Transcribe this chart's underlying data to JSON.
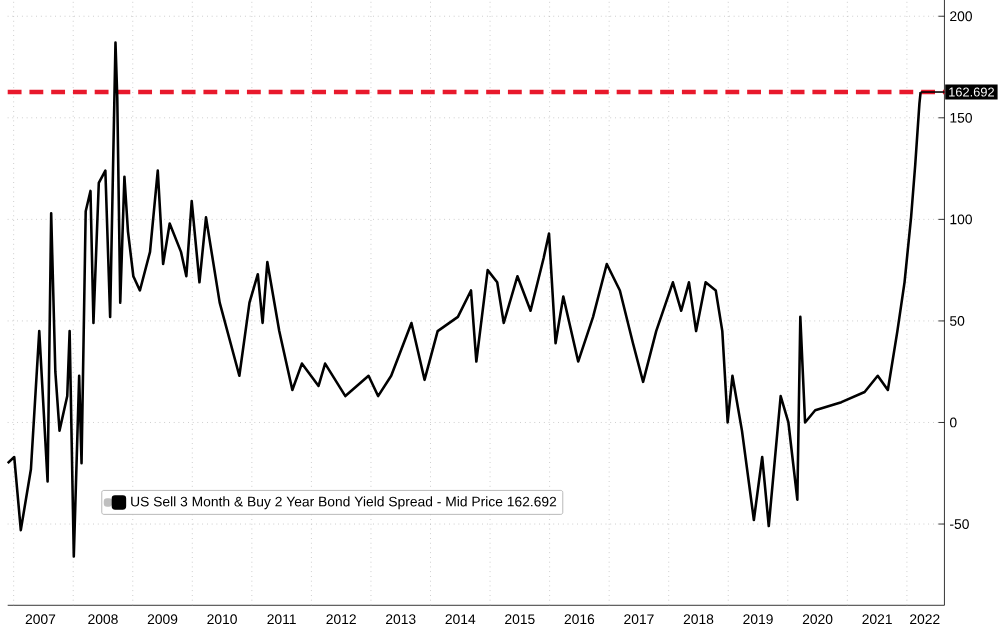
{
  "chart_data": {
    "type": "line",
    "grid": true,
    "legend": "bottom left",
    "marker": "none",
    "line_style": "solid",
    "xlim": [
      2006.9,
      2022.63
    ],
    "ylim": [
      -90,
      208
    ],
    "xticks": [
      {
        "value": 2007,
        "label": null
      },
      {
        "value": 2008,
        "label": null
      },
      {
        "value": 2009,
        "label": null
      },
      {
        "value": 2010,
        "label": null
      },
      {
        "value": 2011,
        "label": null
      },
      {
        "value": 2012,
        "label": null
      },
      {
        "value": 2013,
        "label": null
      },
      {
        "value": 2014,
        "label": null
      },
      {
        "value": 2015,
        "label": null
      },
      {
        "value": 2016,
        "label": null
      },
      {
        "value": 2017,
        "label": null
      },
      {
        "value": 2018,
        "label": null
      },
      {
        "value": 2019,
        "label": null
      },
      {
        "value": 2020,
        "label": null
      },
      {
        "value": 2021,
        "label": null
      },
      {
        "value": 2022,
        "label": null
      },
      {
        "value": 2007.45,
        "label": "2007"
      },
      {
        "value": 2008.5,
        "label": "2008"
      },
      {
        "value": 2009.5,
        "label": "2009"
      },
      {
        "value": 2010.5,
        "label": "2010"
      },
      {
        "value": 2011.5,
        "label": "2011"
      },
      {
        "value": 2012.5,
        "label": "2012"
      },
      {
        "value": 2013.5,
        "label": "2013"
      },
      {
        "value": 2014.5,
        "label": "2014"
      },
      {
        "value": 2015.5,
        "label": "2015"
      },
      {
        "value": 2016.5,
        "label": "2016"
      },
      {
        "value": 2017.5,
        "label": "2017"
      },
      {
        "value": 2018.5,
        "label": "2018"
      },
      {
        "value": 2019.5,
        "label": "2019"
      },
      {
        "value": 2020.5,
        "label": "2020"
      },
      {
        "value": 2021.5,
        "label": "2021"
      },
      {
        "value": 2022.3,
        "label": "2022"
      }
    ],
    "yticks": [
      -50,
      0,
      50,
      100,
      150,
      200
    ],
    "ref_lines": [
      {
        "axis": "y",
        "value": 162.692,
        "color": "#e8192c",
        "line_style": "dashed"
      }
    ],
    "annotations": [
      {
        "text": "162.692",
        "x": 2022.23,
        "y": 162.692
      }
    ],
    "series": [
      {
        "name": "US Sell 3 Month & Buy 2 Year Bond Yield Spread - Mid Price 162.692",
        "color": "#000000",
        "x": [
          2006.9,
          2007.01,
          2007.12,
          2007.29,
          2007.43,
          2007.57,
          2007.63,
          2007.7,
          2007.77,
          2007.9,
          2007.94,
          2008.01,
          2008.1,
          2008.14,
          2008.21,
          2008.29,
          2008.34,
          2008.43,
          2008.54,
          2008.62,
          2008.71,
          2008.74,
          2008.79,
          2008.86,
          2008.92,
          2009.01,
          2009.12,
          2009.29,
          2009.42,
          2009.51,
          2009.62,
          2009.81,
          2009.9,
          2009.99,
          2010.12,
          2010.23,
          2010.46,
          2010.79,
          2010.96,
          2011.1,
          2011.18,
          2011.26,
          2011.46,
          2011.68,
          2011.84,
          2012.12,
          2012.23,
          2012.57,
          2012.96,
          2013.12,
          2013.34,
          2013.68,
          2013.9,
          2014.12,
          2014.46,
          2014.68,
          2014.77,
          2014.96,
          2015.12,
          2015.23,
          2015.46,
          2015.68,
          2015.9,
          2015.99,
          2016.1,
          2016.23,
          2016.48,
          2016.73,
          2016.96,
          2017.18,
          2017.4,
          2017.57,
          2017.79,
          2018.07,
          2018.21,
          2018.34,
          2018.46,
          2018.62,
          2018.79,
          2018.9,
          2018.99,
          2019.07,
          2019.23,
          2019.43,
          2019.57,
          2019.68,
          2019.88,
          2020.01,
          2020.16,
          2020.21,
          2020.29,
          2020.46,
          2020.9,
          2021.29,
          2021.51,
          2021.68,
          2021.84,
          2021.96,
          2022.07,
          2022.14,
          2022.21,
          2022.23
        ],
        "values": [
          -20,
          -17,
          -53,
          -23,
          45,
          -29,
          103,
          25,
          -4,
          13,
          45,
          -66,
          23,
          -20,
          104,
          114,
          49,
          118,
          124,
          52,
          187,
          160,
          59,
          121,
          94,
          72,
          65,
          84,
          124,
          78,
          98,
          84,
          72,
          109,
          69,
          101,
          59,
          23,
          59,
          73,
          49,
          79,
          45,
          16,
          29,
          18,
          29,
          13,
          23,
          13,
          23,
          49,
          21,
          45,
          52,
          65,
          30,
          75,
          69,
          49,
          72,
          55,
          81,
          93,
          39,
          62,
          30,
          52,
          78,
          65,
          39,
          20,
          45,
          69,
          55,
          69,
          45,
          69,
          65,
          45,
          0,
          23,
          -4,
          -48,
          -17,
          -51,
          13,
          0,
          -38,
          52,
          0,
          6,
          10,
          15,
          23,
          16,
          45,
          69,
          101,
          127,
          157,
          162.692
        ]
      }
    ]
  }
}
